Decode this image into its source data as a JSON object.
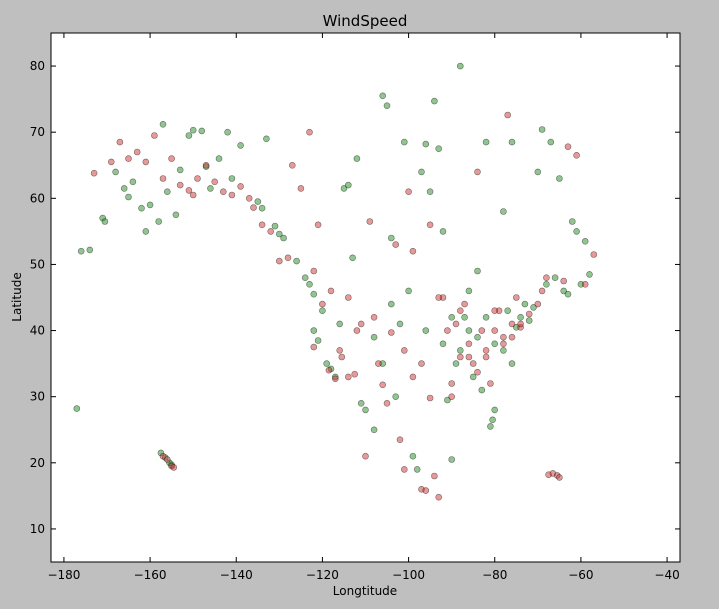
{
  "chart_data": {
    "type": "scatter",
    "title": "WindSpeed",
    "xlabel": "Longtitude",
    "ylabel": "Latitude",
    "xlim": [
      -183,
      -37
    ],
    "ylim": [
      5,
      85
    ],
    "xticks": [
      -180,
      -160,
      -140,
      -120,
      -100,
      -80,
      -60,
      -40
    ],
    "yticks": [
      10,
      20,
      30,
      40,
      50,
      60,
      70,
      80
    ],
    "xtick_labels": [
      "−180",
      "−160",
      "−140",
      "−120",
      "−100",
      "−80",
      "−60",
      "−40"
    ],
    "ytick_labels": [
      "10",
      "20",
      "30",
      "40",
      "50",
      "60",
      "70",
      "80"
    ],
    "grid": false,
    "series": [
      {
        "color": "#228b22",
        "points": [
          [
            -177,
            28.2
          ],
          [
            -176,
            52
          ],
          [
            -174,
            52.2
          ],
          [
            -171,
            57
          ],
          [
            -170.5,
            56.5
          ],
          [
            -168,
            64
          ],
          [
            -166,
            61.5
          ],
          [
            -165,
            60.2
          ],
          [
            -164,
            62.5
          ],
          [
            -162,
            58.5
          ],
          [
            -161,
            55
          ],
          [
            -160,
            59
          ],
          [
            -158,
            56.5
          ],
          [
            -157,
            71.2
          ],
          [
            -156,
            61
          ],
          [
            -154,
            57.5
          ],
          [
            -153,
            64.3
          ],
          [
            -151,
            69.5
          ],
          [
            -150,
            70.3
          ],
          [
            -148,
            70.2
          ],
          [
            -147,
            64.8
          ],
          [
            -146,
            61.5
          ],
          [
            -144,
            66
          ],
          [
            -142,
            70
          ],
          [
            -141,
            63
          ],
          [
            -139,
            68
          ],
          [
            -135,
            59.5
          ],
          [
            -134,
            58.5
          ],
          [
            -133,
            69
          ],
          [
            -131,
            55.8
          ],
          [
            -130,
            54.6
          ],
          [
            -129,
            54
          ],
          [
            -126,
            50.5
          ],
          [
            -124,
            48
          ],
          [
            -122,
            45.5
          ],
          [
            -121,
            38.5
          ],
          [
            -120,
            43
          ],
          [
            -119,
            35
          ],
          [
            -118,
            34.2
          ],
          [
            -117,
            33
          ],
          [
            -116,
            41
          ],
          [
            -115,
            61.5
          ],
          [
            -114,
            62
          ],
          [
            -113,
            51
          ],
          [
            -112,
            66
          ],
          [
            -111,
            29
          ],
          [
            -110,
            28
          ],
          [
            -108,
            25
          ],
          [
            -106,
            75.5
          ],
          [
            -105,
            74
          ],
          [
            -104,
            54
          ],
          [
            -103,
            30
          ],
          [
            -102,
            41
          ],
          [
            -101,
            68.5
          ],
          [
            -99,
            21
          ],
          [
            -98,
            19
          ],
          [
            -97,
            64
          ],
          [
            -96,
            68.2
          ],
          [
            -95,
            61
          ],
          [
            -94,
            74.7
          ],
          [
            -93,
            67.5
          ],
          [
            -92,
            55
          ],
          [
            -91,
            29.5
          ],
          [
            -90,
            20.5
          ],
          [
            -89,
            35
          ],
          [
            -88,
            80
          ],
          [
            -87,
            42
          ],
          [
            -86,
            46
          ],
          [
            -85,
            33
          ],
          [
            -84,
            49
          ],
          [
            -83,
            31
          ],
          [
            -82,
            68.5
          ],
          [
            -81,
            25.5
          ],
          [
            -80.5,
            26.5
          ],
          [
            -80,
            28
          ],
          [
            -78,
            58
          ],
          [
            -77,
            43
          ],
          [
            -76,
            68.5
          ],
          [
            -75,
            40.5
          ],
          [
            -74,
            42
          ],
          [
            -73,
            44
          ],
          [
            -72,
            41.5
          ],
          [
            -71,
            43.5
          ],
          [
            -70,
            64
          ],
          [
            -69,
            70.4
          ],
          [
            -68,
            47
          ],
          [
            -67,
            68.5
          ],
          [
            -66,
            48
          ],
          [
            -65,
            63
          ],
          [
            -64,
            46
          ],
          [
            -63,
            45.5
          ],
          [
            -62,
            56.5
          ],
          [
            -61,
            55
          ],
          [
            -60,
            47
          ],
          [
            -59,
            53.5
          ],
          [
            -58,
            48.5
          ],
          [
            -157.5,
            21.5
          ],
          [
            -156.5,
            20.8
          ],
          [
            -155.5,
            20
          ],
          [
            -155,
            19.7
          ],
          [
            -108,
            39
          ],
          [
            -106,
            35
          ],
          [
            -104,
            44
          ],
          [
            -100,
            46
          ],
          [
            -96,
            40
          ],
          [
            -92,
            38
          ],
          [
            -90,
            42
          ],
          [
            -88,
            37
          ],
          [
            -86,
            40
          ],
          [
            -84,
            39
          ],
          [
            -82,
            42
          ],
          [
            -80,
            38
          ],
          [
            -78,
            37
          ],
          [
            -76,
            35
          ],
          [
            -123,
            47
          ],
          [
            -122,
            40
          ]
        ]
      },
      {
        "color": "#cd3333",
        "points": [
          [
            -173,
            63.8
          ],
          [
            -169,
            65.5
          ],
          [
            -167,
            68.5
          ],
          [
            -165,
            66
          ],
          [
            -163,
            67
          ],
          [
            -161,
            65.5
          ],
          [
            -159,
            69.5
          ],
          [
            -157,
            63
          ],
          [
            -155,
            66
          ],
          [
            -153,
            62
          ],
          [
            -151,
            61.2
          ],
          [
            -150,
            60.5
          ],
          [
            -149,
            63
          ],
          [
            -147,
            65
          ],
          [
            -145,
            62.5
          ],
          [
            -143,
            61
          ],
          [
            -141,
            60.5
          ],
          [
            -139,
            61.8
          ],
          [
            -137,
            60
          ],
          [
            -136,
            58.6
          ],
          [
            -134,
            56
          ],
          [
            -132,
            55
          ],
          [
            -130,
            50.5
          ],
          [
            -128,
            51
          ],
          [
            -127,
            65
          ],
          [
            -125,
            61.5
          ],
          [
            -123,
            70
          ],
          [
            -122,
            49
          ],
          [
            -121,
            56
          ],
          [
            -120,
            44
          ],
          [
            -118,
            46
          ],
          [
            -116,
            37
          ],
          [
            -114,
            33
          ],
          [
            -112,
            40
          ],
          [
            -110,
            21
          ],
          [
            -109,
            56.5
          ],
          [
            -107,
            35
          ],
          [
            -105,
            29
          ],
          [
            -103,
            53
          ],
          [
            -102,
            23.5
          ],
          [
            -101,
            19
          ],
          [
            -100,
            61
          ],
          [
            -99,
            52
          ],
          [
            -97,
            16
          ],
          [
            -96,
            15.8
          ],
          [
            -95,
            56
          ],
          [
            -94,
            18
          ],
          [
            -93,
            14.8
          ],
          [
            -92,
            45
          ],
          [
            -91,
            40
          ],
          [
            -90,
            32
          ],
          [
            -89,
            41
          ],
          [
            -88,
            36
          ],
          [
            -87,
            44
          ],
          [
            -86,
            38
          ],
          [
            -85,
            35
          ],
          [
            -84,
            64
          ],
          [
            -83,
            40
          ],
          [
            -82,
            37
          ],
          [
            -81,
            32
          ],
          [
            -80,
            40
          ],
          [
            -79,
            43
          ],
          [
            -78,
            39
          ],
          [
            -77,
            72.6
          ],
          [
            -76,
            41
          ],
          [
            -75,
            45
          ],
          [
            -74,
            40.5
          ],
          [
            -72,
            42.5
          ],
          [
            -70,
            44
          ],
          [
            -69,
            46
          ],
          [
            -68,
            48
          ],
          [
            -67.5,
            18.2
          ],
          [
            -66.5,
            18.4
          ],
          [
            -65.5,
            18.1
          ],
          [
            -65,
            17.8
          ],
          [
            -64,
            47.5
          ],
          [
            -63,
            67.8
          ],
          [
            -61,
            66.5
          ],
          [
            -59,
            47
          ],
          [
            -57,
            51.5
          ],
          [
            -157,
            21
          ],
          [
            -156,
            20.5
          ],
          [
            -155,
            19.5
          ],
          [
            -154.5,
            19.3
          ],
          [
            -118.5,
            34
          ],
          [
            -117,
            32.7
          ],
          [
            -114,
            45
          ],
          [
            -111,
            41
          ],
          [
            -108,
            42
          ],
          [
            -104,
            39.7
          ],
          [
            -101,
            37
          ],
          [
            -97,
            35
          ],
          [
            -95,
            29.8
          ],
          [
            -93,
            45
          ],
          [
            -90,
            30
          ],
          [
            -88,
            43
          ],
          [
            -86,
            36
          ],
          [
            -84,
            33.7
          ],
          [
            -82,
            36
          ],
          [
            -80,
            43
          ],
          [
            -78,
            38
          ],
          [
            -76,
            39
          ],
          [
            -74,
            41
          ],
          [
            -122,
            37.5
          ],
          [
            -106,
            31.8
          ],
          [
            -99,
            33
          ],
          [
            -112.5,
            33.4
          ],
          [
            -115.5,
            36
          ]
        ]
      }
    ]
  }
}
